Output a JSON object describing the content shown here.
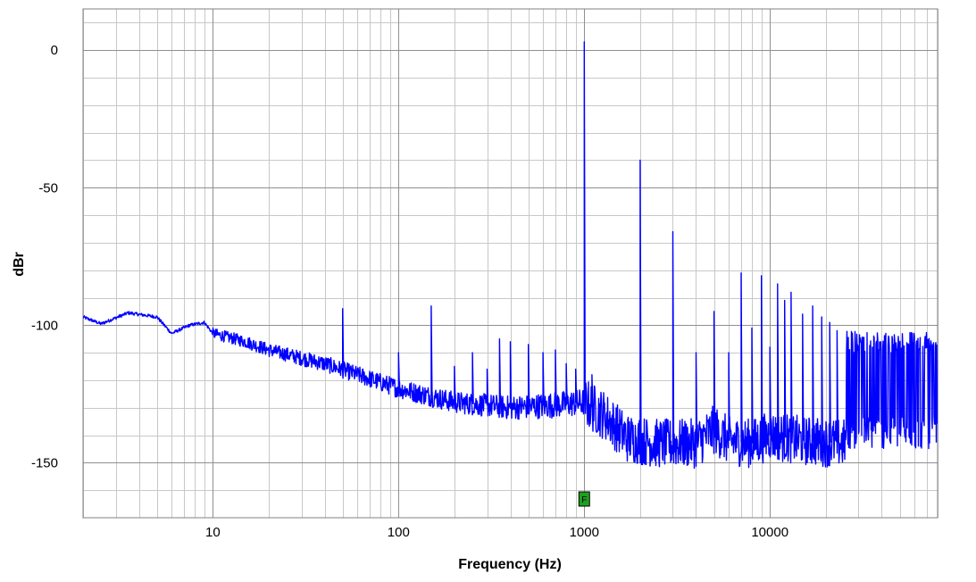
{
  "chart_data": {
    "type": "line",
    "title": "",
    "xlabel": "Frequency (Hz)",
    "ylabel": "dBr",
    "x_scale": "log",
    "xlim": [
      2,
      80000
    ],
    "ylim": [
      -170,
      15
    ],
    "grid": true,
    "x_ticks": [
      {
        "value": 10,
        "label": "10"
      },
      {
        "value": 100,
        "label": "100"
      },
      {
        "value": 1000,
        "label": "1000"
      },
      {
        "value": 10000,
        "label": "10000"
      }
    ],
    "y_ticks": [
      {
        "value": 0,
        "label": "0"
      },
      {
        "value": -50,
        "label": "-50"
      },
      {
        "value": -100,
        "label": "-100"
      },
      {
        "value": -150,
        "label": "-150"
      }
    ],
    "line_color": "#0000ff",
    "marker": {
      "label": "F",
      "x": 1000,
      "color": "#1f9f1f"
    },
    "noise_floor": [
      [
        2,
        -97
      ],
      [
        2.5,
        -99.5
      ],
      [
        3.5,
        -95.5
      ],
      [
        5,
        -97
      ],
      [
        6,
        -103
      ],
      [
        7.5,
        -100
      ],
      [
        9,
        -99
      ],
      [
        10,
        -103
      ],
      [
        15,
        -106
      ],
      [
        20,
        -109
      ],
      [
        30,
        -112
      ],
      [
        40,
        -114
      ],
      [
        60,
        -118
      ],
      [
        100,
        -123
      ],
      [
        200,
        -128
      ],
      [
        400,
        -130
      ],
      [
        700,
        -129
      ],
      [
        1000,
        -128
      ],
      [
        1300,
        -133
      ],
      [
        1700,
        -141
      ],
      [
        2500,
        -143
      ],
      [
        4000,
        -143
      ],
      [
        5000,
        -138
      ],
      [
        6000,
        -142
      ],
      [
        8000,
        -143
      ],
      [
        10000,
        -140
      ],
      [
        15000,
        -142
      ],
      [
        25000,
        -143
      ],
      [
        28000,
        -138
      ],
      [
        50000,
        -137
      ],
      [
        80000,
        -133
      ]
    ],
    "peaks": [
      [
        50,
        -94
      ],
      [
        100,
        -110
      ],
      [
        150,
        -93
      ],
      [
        200,
        -115
      ],
      [
        250,
        -110
      ],
      [
        300,
        -116
      ],
      [
        350,
        -105
      ],
      [
        400,
        -106
      ],
      [
        500,
        -107
      ],
      [
        600,
        -110
      ],
      [
        700,
        -109
      ],
      [
        800,
        -114
      ],
      [
        900,
        -116
      ],
      [
        1000,
        3
      ],
      [
        1100,
        -118
      ],
      [
        2000,
        -40
      ],
      [
        3000,
        -66
      ],
      [
        4000,
        -110
      ],
      [
        5000,
        -95
      ],
      [
        6000,
        -110
      ],
      [
        7000,
        -81
      ],
      [
        8000,
        -101
      ],
      [
        9000,
        -82
      ],
      [
        10000,
        -108
      ],
      [
        11000,
        -85
      ],
      [
        12000,
        -91
      ],
      [
        13000,
        -88
      ],
      [
        15000,
        -96
      ],
      [
        17000,
        -93
      ],
      [
        19000,
        -97
      ],
      [
        21000,
        -99
      ],
      [
        23000,
        -102
      ]
    ],
    "high_band": {
      "from": 25500,
      "to": 80000,
      "top": -102,
      "bottom": -145
    }
  }
}
